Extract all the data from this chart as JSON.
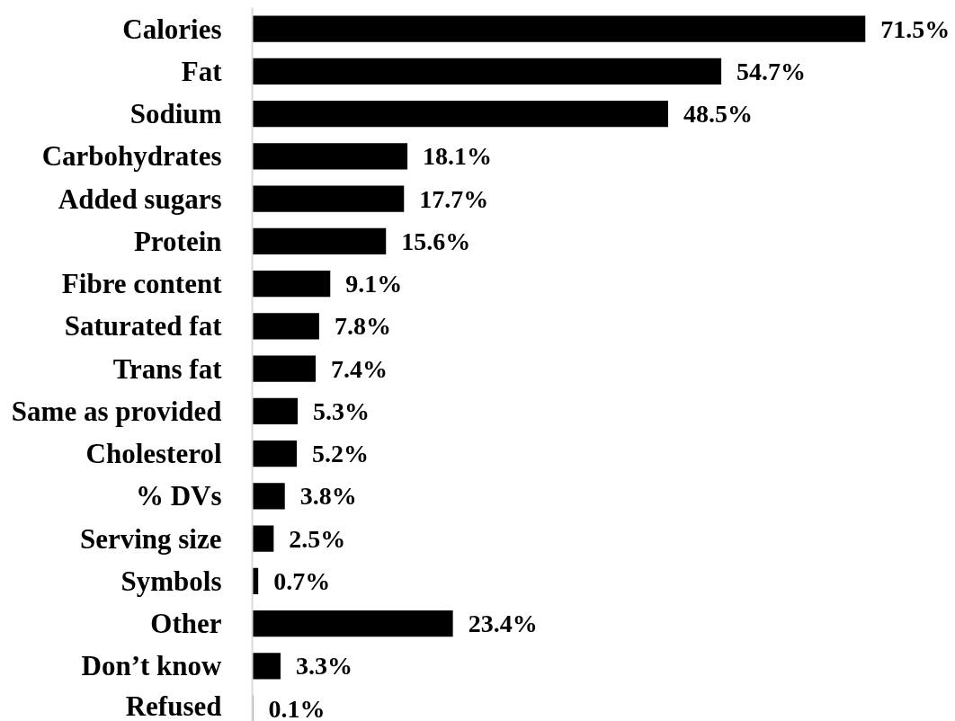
{
  "chart_data": {
    "type": "bar",
    "orientation": "horizontal",
    "categories": [
      "Calories",
      "Fat",
      "Sodium",
      "Carbohydrates",
      "Added sugars",
      "Protein",
      "Fibre content",
      "Saturated fat",
      "Trans fat",
      "Same as provided",
      "Cholesterol",
      "% DVs",
      "Serving size",
      "Symbols",
      "Other",
      "Don’t know",
      "Refused"
    ],
    "values": [
      71.5,
      54.7,
      48.5,
      18.1,
      17.7,
      15.6,
      9.1,
      7.8,
      7.4,
      5.3,
      5.2,
      3.8,
      2.5,
      0.7,
      23.4,
      3.3,
      0.1
    ],
    "color": "#000000",
    "value_labels": [
      "71.5%",
      "54.7%",
      "48.5%",
      "18.1%",
      "17.7%",
      "15.6%",
      "9.1%",
      "7.8%",
      "7.4%",
      "5.3%",
      "5.2%",
      "3.8%",
      "2.5%",
      "0.7%",
      "23.4%",
      "3.3%",
      "0.1%"
    ]
  }
}
